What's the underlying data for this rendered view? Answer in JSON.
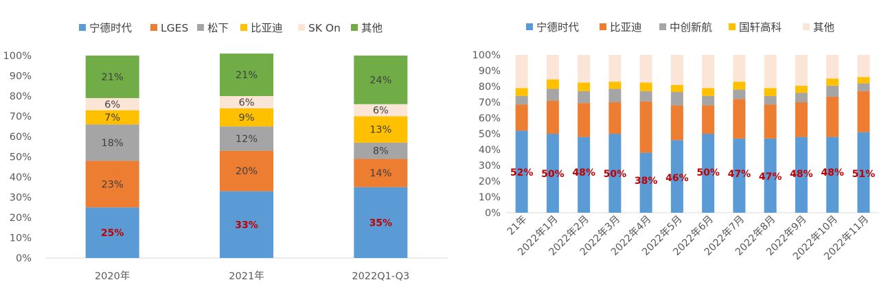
{
  "chart_data": [
    {
      "type": "bar",
      "stacked": true,
      "percent": true,
      "categories": [
        "2020年",
        "2021年",
        "2022Q1-Q3"
      ],
      "series": [
        {
          "name": "宁德时代",
          "color": "#5b9bd5",
          "values": [
            25,
            33,
            35
          ]
        },
        {
          "name": "LGES",
          "color": "#ed7d31",
          "values": [
            23,
            20,
            14
          ]
        },
        {
          "name": "松下",
          "color": "#a5a5a5",
          "values": [
            18,
            12,
            8
          ]
        },
        {
          "name": "比亚迪",
          "color": "#ffc000",
          "values": [
            7,
            9,
            13
          ]
        },
        {
          "name": "SK On",
          "color": "#fbe5d6",
          "values": [
            6,
            6,
            6
          ]
        },
        {
          "name": "其他",
          "color": "#70ad47",
          "values": [
            21,
            21,
            24
          ]
        }
      ],
      "data_labels": {
        "宁德时代": [
          "25%",
          "33%",
          "35%"
        ],
        "LGES": [
          "23%",
          "20%",
          "14%"
        ],
        "松下": [
          "18%",
          "12%",
          "8%"
        ],
        "比亚迪": [
          "7%",
          "9%",
          "13%"
        ],
        "SK On": [
          "6%",
          "6%",
          "6%"
        ],
        "其他": [
          "21%",
          "21%",
          "24%"
        ]
      },
      "yticks": [
        "0%",
        "10%",
        "20%",
        "30%",
        "40%",
        "50%",
        "60%",
        "70%",
        "80%",
        "90%",
        "100%"
      ],
      "ylim": [
        0,
        100
      ],
      "legend": "top",
      "grid": false
    },
    {
      "type": "bar",
      "stacked": true,
      "percent": true,
      "categories": [
        "21年",
        "2022年1月",
        "2022年2月",
        "2022年3月",
        "2022年4月",
        "2022年5月",
        "2022年6月",
        "2022年7月",
        "2022年8月",
        "2022年9月",
        "2022年10月",
        "2022年11月"
      ],
      "series": [
        {
          "name": "宁德时代",
          "color": "#5b9bd5",
          "values": [
            52,
            50,
            48,
            50,
            38,
            46,
            50,
            47,
            47,
            48,
            48,
            51
          ]
        },
        {
          "name": "比亚迪",
          "color": "#ed7d31",
          "values": [
            16.5,
            21,
            21.5,
            20,
            32.5,
            22,
            18,
            25,
            21.5,
            22,
            25.5,
            26
          ]
        },
        {
          "name": "中创新航",
          "color": "#a5a5a5",
          "values": [
            5.5,
            7.5,
            7.5,
            8.5,
            6.5,
            8.5,
            6,
            6,
            5.5,
            6,
            7,
            5
          ]
        },
        {
          "name": "国轩高科",
          "color": "#ffc000",
          "values": [
            5,
            6,
            5.5,
            4.5,
            5.5,
            4.5,
            5,
            5,
            5,
            4.5,
            4.5,
            4
          ]
        },
        {
          "name": "其他",
          "color": "#fbe5d6",
          "values": [
            21,
            15.5,
            17.5,
            17,
            17.5,
            19,
            21,
            17,
            21,
            19.5,
            15,
            14
          ]
        }
      ],
      "highlight_labels": [
        "52%",
        "50%",
        "48%",
        "50%",
        "38%",
        "46%",
        "50%",
        "47%",
        "47%",
        "48%",
        "48%",
        "51%"
      ],
      "yticks": [
        "0%",
        "10%",
        "20%",
        "30%",
        "40%",
        "50%",
        "60%",
        "70%",
        "80%",
        "90%",
        "100%"
      ],
      "ylim": [
        0,
        100
      ],
      "legend": "top",
      "grid": false
    }
  ]
}
